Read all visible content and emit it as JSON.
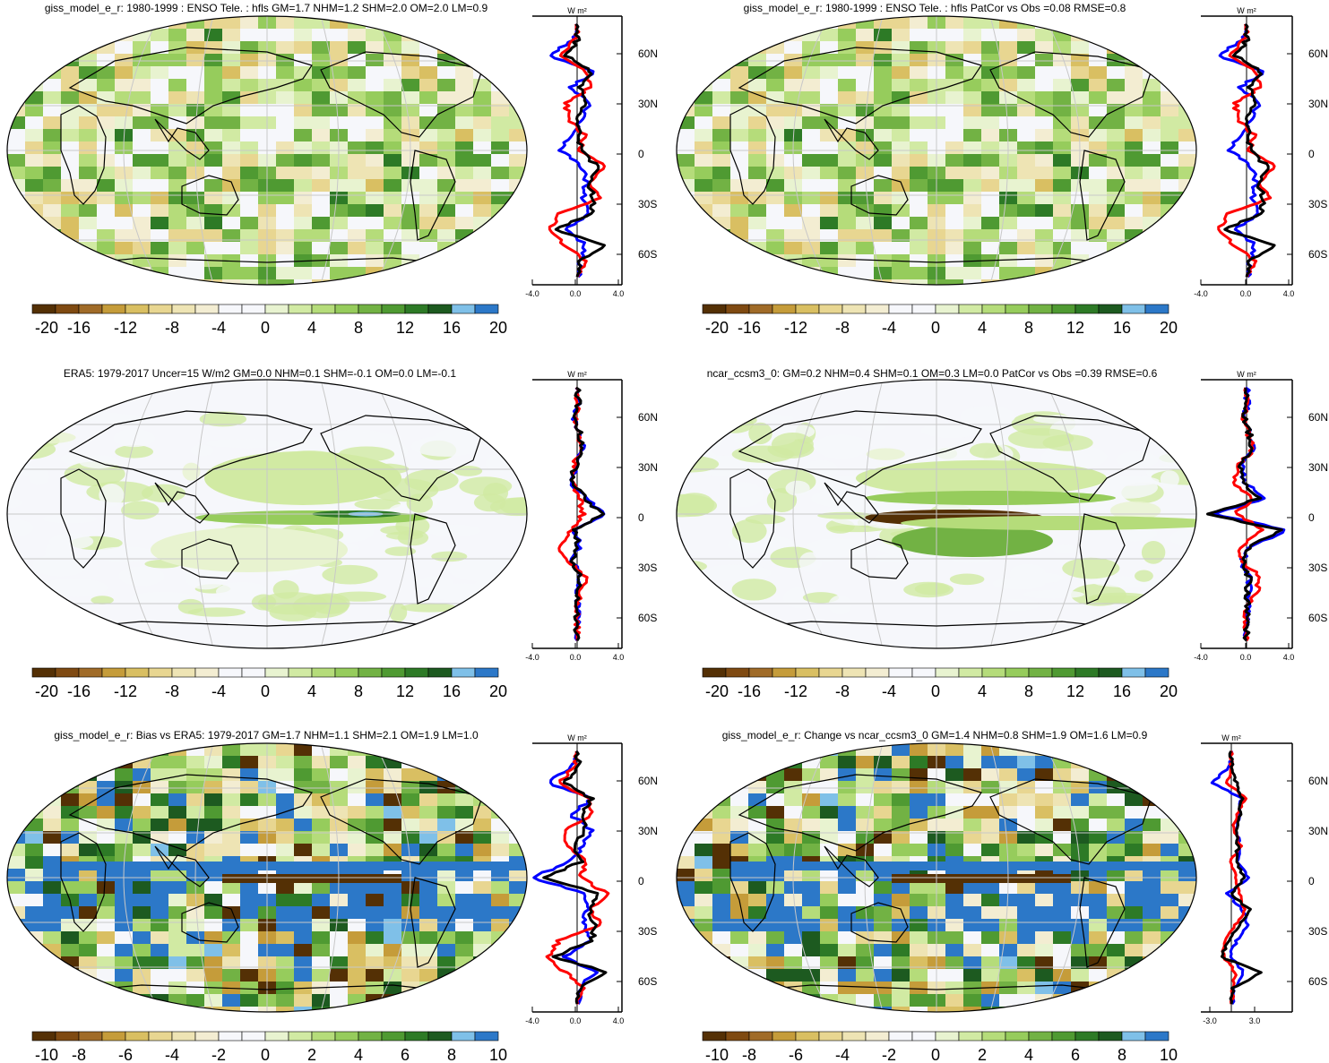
{
  "chart_data": [
    {
      "type": "heatmap",
      "title": "giss_model_e_r: 1980-1999 : ENSO Tele. : hfls GM=1.7 NHM=1.2 SHM=2.0 OM=2.0 LM=0.9",
      "colorbar_ticks": [
        "-20",
        "-16",
        "-12",
        "-8",
        "-4",
        "0",
        "4",
        "8",
        "12",
        "16",
        "20"
      ],
      "profile": {
        "unit": "W m²",
        "xticks": [
          "-4.0",
          "0.0",
          "4.0"
        ],
        "yticks": [
          "60N",
          "30N",
          "0",
          "30S",
          "60S"
        ],
        "xlim": [
          -4,
          4
        ],
        "series": [
          {
            "color": "#0000ff",
            "lat": [
              80,
              70,
              60,
              50,
              40,
              30,
              20,
              10,
              0,
              -10,
              -20,
              -30,
              -40,
              -50,
              -60,
              -70,
              -80
            ],
            "values": [
              0.1,
              -0.3,
              -2.5,
              1.5,
              -0.5,
              1.0,
              0.5,
              -0.5,
              -1.5,
              0.4,
              0.8,
              0.5,
              1.0,
              -1.0,
              0.8,
              0.2,
              0.1
            ]
          },
          {
            "color": "#ff0000",
            "lat": [
              80,
              70,
              60,
              50,
              40,
              30,
              20,
              10,
              0,
              -10,
              -20,
              -30,
              -40,
              -50,
              -60,
              -70,
              -80
            ],
            "values": [
              0.0,
              -0.2,
              -1.5,
              0.8,
              1.2,
              -1.0,
              -0.8,
              0.6,
              0.3,
              2.5,
              1.2,
              2.0,
              -1.5,
              -2.5,
              -1.0,
              0.6,
              0.1
            ]
          },
          {
            "color": "#000000",
            "lat": [
              80,
              70,
              60,
              50,
              40,
              30,
              20,
              10,
              0,
              -10,
              -20,
              -30,
              -40,
              -50,
              -60,
              -70,
              -80
            ],
            "values": [
              0.0,
              0.1,
              -1.0,
              1.2,
              0.3,
              0.6,
              -0.2,
              0.3,
              0.2,
              1.8,
              1.0,
              1.5,
              1.2,
              -2.0,
              2.6,
              0.2,
              0.0
            ]
          }
        ]
      }
    },
    {
      "type": "heatmap",
      "title": "giss_model_e_r: 1980-1999 : ENSO Tele. : hfls PatCor vs Obs =0.08 RMSE=0.8",
      "colorbar_ticks": [
        "-20",
        "-16",
        "-12",
        "-8",
        "-4",
        "0",
        "4",
        "8",
        "12",
        "16",
        "20"
      ],
      "profile": {
        "unit": "W m²",
        "xticks": [
          "-4.0",
          "0.0",
          "4.0"
        ],
        "yticks": [
          "60N",
          "30N",
          "0",
          "30S",
          "60S"
        ],
        "xlim": [
          -4,
          4
        ],
        "series": [
          {
            "color": "#0000ff",
            "lat": [
              80,
              70,
              60,
              50,
              40,
              30,
              20,
              10,
              0,
              -10,
              -20,
              -30,
              -40,
              -50,
              -60,
              -70,
              -80
            ],
            "values": [
              0.1,
              -0.3,
              -2.5,
              1.5,
              -0.5,
              1.0,
              0.5,
              -0.5,
              -1.5,
              0.4,
              0.8,
              0.5,
              1.0,
              -1.0,
              0.8,
              0.2,
              0.1
            ]
          },
          {
            "color": "#ff0000",
            "lat": [
              80,
              70,
              60,
              50,
              40,
              30,
              20,
              10,
              0,
              -10,
              -20,
              -30,
              -40,
              -50,
              -60,
              -70,
              -80
            ],
            "values": [
              0.0,
              -0.2,
              -1.5,
              0.8,
              1.2,
              -1.0,
              -0.8,
              0.6,
              0.3,
              2.5,
              1.2,
              2.0,
              -1.5,
              -2.5,
              -1.0,
              0.6,
              0.1
            ]
          },
          {
            "color": "#000000",
            "lat": [
              80,
              70,
              60,
              50,
              40,
              30,
              20,
              10,
              0,
              -10,
              -20,
              -30,
              -40,
              -50,
              -60,
              -70,
              -80
            ],
            "values": [
              0.0,
              0.1,
              -1.0,
              1.2,
              0.3,
              0.6,
              -0.2,
              0.3,
              0.2,
              1.8,
              1.0,
              1.5,
              1.2,
              -2.0,
              2.6,
              0.2,
              0.0
            ]
          }
        ]
      }
    },
    {
      "type": "heatmap",
      "title": "ERA5: 1979-2017 Uncer=15 W/m2 GM=0.0 NHM=0.1 SHM=-0.1 OM=0.0 LM=-0.1",
      "colorbar_ticks": [
        "-20",
        "-16",
        "-12",
        "-8",
        "-4",
        "0",
        "4",
        "8",
        "12",
        "16",
        "20"
      ],
      "profile": {
        "unit": "W m²",
        "xticks": [
          "-4.0",
          "0.0",
          "4.0"
        ],
        "yticks": [
          "60N",
          "30N",
          "0",
          "30S",
          "60S"
        ],
        "xlim": [
          -4,
          4
        ],
        "series": [
          {
            "color": "#0000ff",
            "lat": [
              80,
              70,
              60,
              50,
              40,
              30,
              20,
              10,
              0,
              -10,
              -20,
              -30,
              -40,
              -50,
              -60,
              -70,
              -80
            ],
            "values": [
              0.0,
              0.2,
              -0.3,
              0.4,
              0.5,
              -0.2,
              -0.5,
              0.7,
              2.6,
              -0.2,
              0.2,
              -0.4,
              0.3,
              0.1,
              0.0,
              0.0,
              0.0
            ]
          },
          {
            "color": "#ff0000",
            "lat": [
              80,
              70,
              60,
              50,
              40,
              30,
              20,
              10,
              0,
              -10,
              -20,
              -30,
              -40,
              -50,
              -60,
              -70,
              -80
            ],
            "values": [
              0.0,
              0.1,
              -0.2,
              0.3,
              0.2,
              -0.3,
              -0.4,
              0.3,
              0.5,
              -0.6,
              -1.6,
              -0.9,
              0.8,
              0.3,
              0.0,
              0.0,
              0.0
            ]
          },
          {
            "color": "#000000",
            "lat": [
              80,
              70,
              60,
              50,
              40,
              30,
              20,
              10,
              0,
              -10,
              -20,
              -30,
              -40,
              -50,
              -60,
              -70,
              -80
            ],
            "values": [
              0.0,
              0.1,
              -0.2,
              0.3,
              0.4,
              -0.2,
              -0.5,
              0.7,
              2.2,
              -0.2,
              0.1,
              -0.3,
              0.2,
              0.1,
              0.0,
              0.0,
              0.0
            ]
          }
        ]
      }
    },
    {
      "type": "heatmap",
      "title": "ncar_ccsm3_0: GM=0.2 NHM=0.4 SHM=0.1 OM=0.3 LM=0.0 PatCor vs Obs =0.39 RMSE=0.6",
      "colorbar_ticks": [
        "-20",
        "-16",
        "-12",
        "-8",
        "-4",
        "0",
        "4",
        "8",
        "12",
        "16",
        "20"
      ],
      "profile": {
        "unit": "W m²",
        "xticks": [
          "-4.0",
          "0.0",
          "4.0"
        ],
        "yticks": [
          "60N",
          "30N",
          "0",
          "30S",
          "60S"
        ],
        "xlim": [
          -4,
          4
        ],
        "series": [
          {
            "color": "#0000ff",
            "lat": [
              80,
              70,
              60,
              50,
              40,
              30,
              20,
              10,
              0,
              -10,
              -20,
              -30,
              -40,
              -50,
              -60,
              -70,
              -80
            ],
            "values": [
              0.0,
              0.1,
              -0.2,
              0.3,
              0.6,
              -0.4,
              -0.3,
              1.8,
              -3.0,
              3.5,
              0.5,
              -0.5,
              0.3,
              0.2,
              0.1,
              0.0,
              0.0
            ]
          },
          {
            "color": "#ff0000",
            "lat": [
              80,
              70,
              60,
              50,
              40,
              30,
              20,
              10,
              0,
              -10,
              -20,
              -30,
              -40,
              -50,
              -60,
              -70,
              -80
            ],
            "values": [
              0.0,
              0.1,
              -0.3,
              0.2,
              0.5,
              -0.8,
              -1.2,
              0.5,
              -1.0,
              1.5,
              -0.5,
              -0.4,
              1.2,
              0.8,
              0.0,
              0.0,
              0.0
            ]
          },
          {
            "color": "#000000",
            "lat": [
              80,
              70,
              60,
              50,
              40,
              30,
              20,
              10,
              0,
              -10,
              -20,
              -30,
              -40,
              -50,
              -60,
              -70,
              -80
            ],
            "values": [
              0.0,
              0.1,
              -0.2,
              0.3,
              0.4,
              -0.5,
              -0.4,
              1.2,
              -3.5,
              3.0,
              0.4,
              -0.3,
              0.2,
              0.1,
              0.0,
              0.0,
              0.0
            ]
          }
        ]
      }
    },
    {
      "type": "heatmap",
      "title": "giss_model_e_r: Bias vs ERA5: 1979-2017 GM=1.7 NHM=1.1 SHM=2.1 OM=1.9 LM=1.0",
      "colorbar_ticks": [
        "-10",
        "-8",
        "-6",
        "-4",
        "-2",
        "0",
        "2",
        "4",
        "6",
        "8",
        "10"
      ],
      "profile": {
        "unit": "W m²",
        "xticks": [
          "-4.0",
          "0.0",
          "4.0"
        ],
        "yticks": [
          "60N",
          "30N",
          "0",
          "30S",
          "60S"
        ],
        "xlim": [
          -4,
          4
        ],
        "series": [
          {
            "color": "#0000ff",
            "lat": [
              80,
              70,
              60,
              50,
              40,
              30,
              20,
              10,
              0,
              -10,
              -20,
              -30,
              -40,
              -50,
              -60,
              -70,
              -80
            ],
            "values": [
              0.1,
              -0.4,
              -2.6,
              1.4,
              -0.6,
              1.2,
              0.6,
              -0.7,
              -4.0,
              0.6,
              0.9,
              0.6,
              1.2,
              -1.1,
              1.6,
              0.2,
              0.1
            ]
          },
          {
            "color": "#ff0000",
            "lat": [
              80,
              70,
              60,
              50,
              40,
              30,
              20,
              10,
              0,
              -10,
              -20,
              -30,
              -40,
              -50,
              -60,
              -70,
              -80
            ],
            "values": [
              0.0,
              -0.3,
              -1.6,
              0.9,
              1.3,
              -1.1,
              -0.9,
              0.7,
              0.4,
              2.6,
              1.3,
              2.1,
              -1.6,
              -2.6,
              -1.1,
              0.7,
              0.1
            ]
          },
          {
            "color": "#000000",
            "lat": [
              80,
              70,
              60,
              50,
              40,
              30,
              20,
              10,
              0,
              -10,
              -20,
              -30,
              -40,
              -50,
              -60,
              -70,
              -80
            ],
            "values": [
              0.0,
              0.1,
              -1.1,
              1.3,
              0.4,
              0.7,
              -0.3,
              0.4,
              -3.0,
              2.0,
              1.1,
              1.6,
              1.3,
              -2.1,
              2.8,
              0.2,
              0.0
            ]
          }
        ]
      }
    },
    {
      "type": "heatmap",
      "title": "giss_model_e_r: Change vs ncar_ccsm3_0 GM=1.4 NHM=0.8 SHM=1.9 OM=1.6 LM=0.9",
      "colorbar_ticks": [
        "-10",
        "-8",
        "-6",
        "-4",
        "-2",
        "0",
        "2",
        "4",
        "6",
        "8",
        "10"
      ],
      "profile": {
        "unit": "W m²",
        "xticks": [
          "-3.0",
          "3.0"
        ],
        "yticks": [
          "60N",
          "30N",
          "0",
          "30S",
          "60S"
        ],
        "xlim": [
          -4.5,
          9
        ],
        "series": [
          {
            "color": "#0000ff",
            "lat": [
              80,
              70,
              60,
              50,
              40,
              30,
              20,
              10,
              0,
              -10,
              -20,
              -30,
              -40,
              -50,
              -60,
              -70,
              -80
            ],
            "values": [
              0.1,
              -0.3,
              -2.8,
              1.5,
              1.0,
              0.8,
              1.2,
              0.9,
              2.5,
              -0.5,
              1.6,
              2.4,
              0.8,
              -0.2,
              1.8,
              0.4,
              0.1
            ]
          },
          {
            "color": "#ff0000",
            "lat": [
              80,
              70,
              60,
              50,
              40,
              30,
              20,
              10,
              0,
              -10,
              -20,
              -30,
              -40,
              -50,
              -60,
              -70,
              -80
            ],
            "values": [
              0.0,
              -0.1,
              -0.5,
              2.0,
              0.8,
              0.3,
              1.5,
              -0.2,
              0.6,
              1.2,
              2.0,
              0.6,
              -1.0,
              -1.2,
              0.6,
              0.2,
              0.0
            ]
          },
          {
            "color": "#000000",
            "lat": [
              80,
              70,
              60,
              50,
              40,
              30,
              20,
              10,
              0,
              -10,
              -20,
              -30,
              -40,
              -50,
              -60,
              -70,
              -80
            ],
            "values": [
              0.0,
              0.0,
              0.8,
              1.6,
              1.2,
              0.8,
              1.0,
              0.6,
              2.0,
              0.0,
              2.6,
              1.2,
              -0.2,
              -1.6,
              4.5,
              0.3,
              0.0
            ]
          }
        ]
      }
    }
  ],
  "colorbar_colors": [
    "#543005",
    "#7f4a12",
    "#a06b28",
    "#c59c3a",
    "#d9bf62",
    "#e8d691",
    "#eee4b4",
    "#f3edd2",
    "#f6f7fb",
    "#f6f7fb",
    "#e8f3d0",
    "#d1eaa3",
    "#b5dc7a",
    "#96cc5c",
    "#72b244",
    "#4f9a32",
    "#2d7a26",
    "#1d5a20",
    "#7fc0e8",
    "#2c78c8"
  ]
}
